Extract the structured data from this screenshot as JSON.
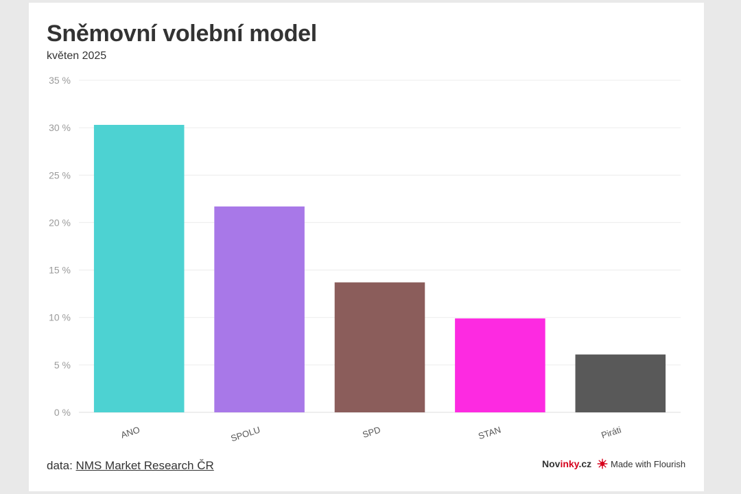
{
  "title": "Sněmovní volební model",
  "subtitle": "květen 2025",
  "source": {
    "prefix": "data: ",
    "link_text": "NMS Market Research ČR"
  },
  "branding": {
    "site_name_part1": "Nov",
    "site_name_accent": "inky",
    "site_name_part2": ".cz",
    "made_with": "Made with Flourish",
    "flourish_icon": "flourish-logo-icon",
    "accent_color": "#d6001c"
  },
  "chart_data": {
    "type": "bar",
    "categories": [
      "ANO",
      "SPOLU",
      "SPD",
      "STAN",
      "Piráti"
    ],
    "values": [
      30.3,
      21.7,
      13.7,
      9.9,
      6.1
    ],
    "colors": [
      "#4dd2d2",
      "#a878e8",
      "#8b5d5b",
      "#fd2ae1",
      "#595959"
    ],
    "title": "Sněmovní volební model",
    "xlabel": "",
    "ylabel": "",
    "ylim": [
      0,
      35
    ],
    "yticks": [
      0,
      5,
      10,
      15,
      20,
      25,
      30,
      35
    ],
    "ytick_suffix": " %",
    "grid": true,
    "legend": "none"
  }
}
